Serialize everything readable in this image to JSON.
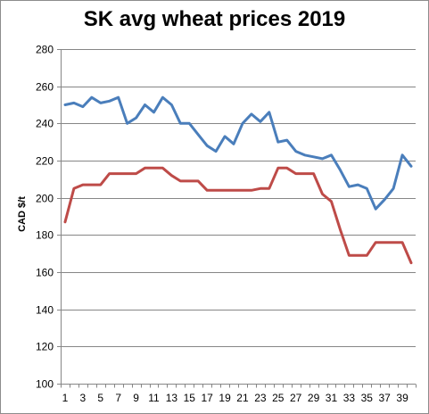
{
  "chart_data": {
    "type": "line",
    "title": "SK avg wheat prices 2019",
    "xlabel": "",
    "ylabel": "CAD $/t",
    "ylim": [
      100,
      280
    ],
    "yticks": [
      100,
      120,
      140,
      160,
      180,
      200,
      220,
      240,
      260,
      280
    ],
    "xlim": [
      1,
      40
    ],
    "xticks": [
      1,
      3,
      5,
      7,
      9,
      11,
      13,
      15,
      17,
      19,
      21,
      23,
      25,
      27,
      29,
      31,
      33,
      35,
      37,
      39
    ],
    "grid": true,
    "legend": "none",
    "x": [
      1,
      2,
      3,
      4,
      5,
      6,
      7,
      8,
      9,
      10,
      11,
      12,
      13,
      14,
      15,
      16,
      17,
      18,
      19,
      20,
      21,
      22,
      23,
      24,
      25,
      26,
      27,
      28,
      29,
      30,
      31,
      32,
      33,
      34,
      35,
      36,
      37,
      38,
      39,
      40
    ],
    "series": [
      {
        "color": "#4a7ebb",
        "values": [
          250,
          251,
          249,
          254,
          251,
          252,
          254,
          240,
          243,
          250,
          246,
          254,
          250,
          240,
          240,
          234,
          228,
          225,
          233,
          229,
          240,
          245,
          241,
          246,
          230,
          231,
          225,
          223,
          222,
          221,
          223,
          215,
          206,
          207,
          205,
          194,
          199,
          205,
          223,
          217
        ]
      },
      {
        "color": "#be4b48",
        "values": [
          187,
          205,
          207,
          207,
          207,
          213,
          213,
          213,
          213,
          216,
          216,
          216,
          212,
          209,
          209,
          209,
          204,
          204,
          204,
          204,
          204,
          204,
          205,
          205,
          216,
          216,
          213,
          213,
          213,
          202,
          198,
          183,
          169,
          169,
          169,
          176,
          176,
          176,
          176,
          165
        ]
      }
    ]
  }
}
